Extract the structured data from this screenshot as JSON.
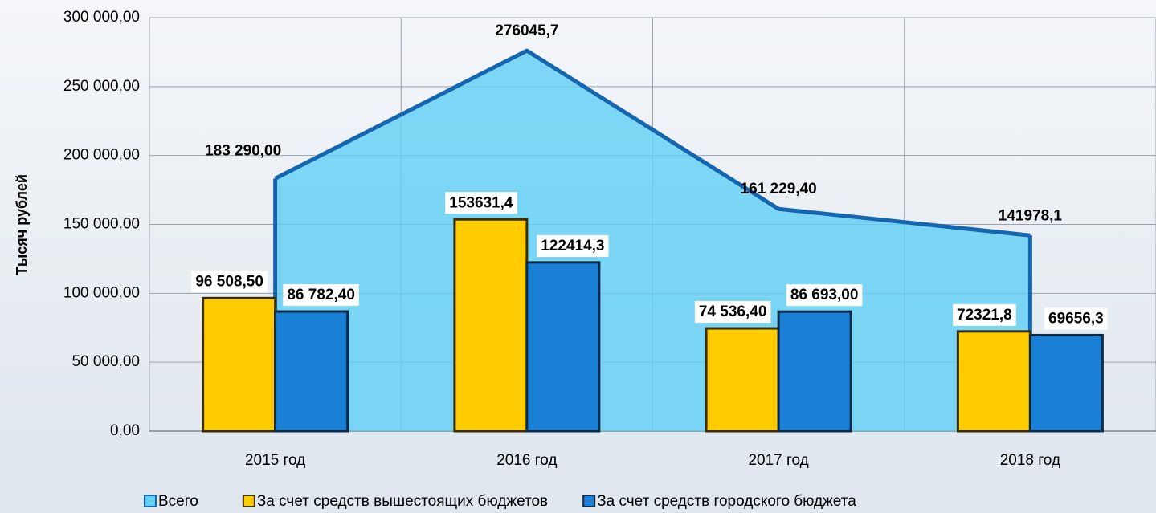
{
  "chart_data": {
    "type": "bar",
    "y_label": "Тысяч рублей",
    "categories": [
      "2015 год",
      "2016 год",
      "2017 год",
      "2018 год"
    ],
    "series": [
      {
        "name": "Всего",
        "kind": "area",
        "color": "#5fd0f5",
        "edge": "#1565b0",
        "label_color": "#3d6191",
        "values": [
          183290,
          276045.7,
          161229.4,
          141978.1
        ],
        "value_labels": [
          "183 290,00",
          "276045,7",
          "161 229,40",
          "141978,1"
        ]
      },
      {
        "name": "За счет средств вышестоящих бюджетов",
        "kind": "bar",
        "color": "#ffcc00",
        "edge": "#3a2e00",
        "label_color": "#a07a00",
        "values": [
          96508.5,
          153631.4,
          74536.4,
          72321.8
        ],
        "value_labels": [
          "96 508,50",
          "153631,4",
          "74 536,40",
          "72321,8"
        ]
      },
      {
        "name": "За счет средств городского бюджета",
        "kind": "bar",
        "color": "#1a80d6",
        "edge": "#0a2a4a",
        "label_color": "#3d6191",
        "values": [
          86782.4,
          122414.3,
          86693,
          69656.3
        ],
        "value_labels": [
          "86 782,40",
          "122414,3",
          "86 693,00",
          "69656,3"
        ]
      }
    ],
    "ylim": [
      0,
      300000
    ],
    "yticks": [
      {
        "value": 0,
        "label": "0,00"
      },
      {
        "value": 50000,
        "label": "50 000,00"
      },
      {
        "value": 100000,
        "label": "100 000,00"
      },
      {
        "value": 150000,
        "label": "150 000,00"
      },
      {
        "value": 200000,
        "label": "200 000,00"
      },
      {
        "value": 250000,
        "label": "250 000,00"
      },
      {
        "value": 300000,
        "label": "300 000,00"
      }
    ],
    "grid": true,
    "legend": "bottom"
  }
}
